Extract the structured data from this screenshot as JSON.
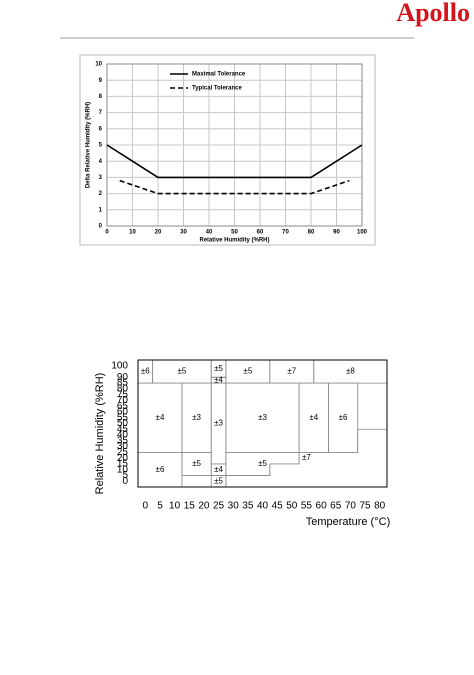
{
  "header": {
    "logo": "Apollo"
  },
  "chart_data": [
    {
      "type": "line",
      "ylabel": "Delta Relative Humidity (%RH)",
      "xlabel": "Relative Humidity (%RH)",
      "xlim": [
        0,
        100
      ],
      "xticks": [
        0,
        10,
        20,
        30,
        40,
        50,
        60,
        70,
        80,
        90,
        100
      ],
      "ylim": [
        0,
        10
      ],
      "yticks": [
        0,
        1,
        2,
        3,
        4,
        5,
        6,
        7,
        8,
        9,
        10
      ],
      "grid": true,
      "series": [
        {
          "name": "Maximal Tolerance",
          "color": "#000000",
          "dash": false,
          "x": [
            0,
            20,
            80,
            100
          ],
          "values": [
            5,
            3,
            3,
            5
          ]
        },
        {
          "name": "Typical Tolerance",
          "color": "#000000",
          "dash": true,
          "x": [
            5,
            20,
            80,
            95
          ],
          "values": [
            2.8,
            2,
            2,
            2.8
          ]
        }
      ]
    },
    {
      "type": "zones",
      "ylabel": "Relative Humidity (%RH)",
      "xlabel": "Temperature (°C)",
      "xlim": [
        -2.5,
        82.5
      ],
      "xticks": [
        0,
        5,
        10,
        15,
        20,
        25,
        30,
        35,
        40,
        45,
        50,
        55,
        60,
        65,
        70,
        75,
        80
      ],
      "ylim": [
        -5,
        105
      ],
      "yticks": [
        0,
        5,
        10,
        15,
        20,
        25,
        30,
        35,
        40,
        45,
        50,
        55,
        60,
        65,
        70,
        75,
        80,
        85,
        90,
        100
      ],
      "zones": [
        {
          "label": "±6",
          "t": [
            -2.5,
            2.5,
            2.5,
            -2.5
          ],
          "rh": [
            85,
            85,
            105,
            105
          ]
        },
        {
          "label": "±5",
          "t": [
            2.5,
            22.5,
            22.5,
            2.5
          ],
          "rh": [
            85,
            85,
            105,
            105
          ]
        },
        {
          "label": "±5",
          "t": [
            22.5,
            27.5,
            27.5,
            22.5
          ],
          "rh": [
            90,
            90,
            105,
            105
          ]
        },
        {
          "label": "±4",
          "t": [
            22.5,
            27.5,
            27.5,
            22.5
          ],
          "rh": [
            85,
            85,
            90,
            90
          ]
        },
        {
          "label": "±5",
          "t": [
            27.5,
            42.5,
            42.5,
            27.5
          ],
          "rh": [
            85,
            85,
            105,
            105
          ]
        },
        {
          "label": "±7",
          "t": [
            42.5,
            57.5,
            57.5,
            42.5
          ],
          "rh": [
            85,
            85,
            105,
            105
          ]
        },
        {
          "label": "±8",
          "t": [
            57.5,
            82.5,
            82.5,
            57.5
          ],
          "rh": [
            85,
            85,
            105,
            105
          ]
        },
        {
          "label": "±4",
          "t": [
            -2.5,
            12.5,
            12.5,
            -2.5
          ],
          "rh": [
            25,
            25,
            85,
            85
          ]
        },
        {
          "label": "±3",
          "t": [
            12.5,
            22.5,
            22.5,
            12.5
          ],
          "rh": [
            25,
            25,
            85,
            85
          ]
        },
        {
          "label": "±3",
          "t": [
            22.5,
            27.5,
            27.5,
            22.5
          ],
          "rh": [
            15,
            15,
            85,
            85
          ]
        },
        {
          "label": "±3",
          "t": [
            27.5,
            52.5,
            52.5,
            27.5
          ],
          "rh": [
            25,
            25,
            85,
            85
          ]
        },
        {
          "label": "±4",
          "t": [
            52.5,
            62.5,
            62.5,
            52.5
          ],
          "rh": [
            25,
            25,
            85,
            85
          ]
        },
        {
          "label": "±6",
          "t": [
            62.5,
            72.5,
            72.5,
            62.5
          ],
          "rh": [
            25,
            25,
            85,
            85
          ]
        },
        {
          "label": "±6",
          "t": [
            -2.5,
            12.5,
            12.5,
            -2.5
          ],
          "rh": [
            -5,
            -5,
            25,
            25
          ]
        },
        {
          "label": "±5",
          "t": [
            12.5,
            22.5,
            22.5,
            12.5
          ],
          "rh": [
            5,
            5,
            25,
            25
          ]
        },
        {
          "label": "±4",
          "t": [
            22.5,
            27.5,
            27.5,
            22.5
          ],
          "rh": [
            5,
            5,
            15,
            15
          ]
        },
        {
          "label": "±5",
          "t": [
            22.5,
            27.5,
            27.5,
            22.5
          ],
          "rh": [
            -5,
            -5,
            5,
            5
          ]
        },
        {
          "label": "±5",
          "t": [
            27.5,
            42.5,
            42.5,
            52.5,
            52.5,
            27.5
          ],
          "rh": [
            5,
            5,
            15,
            15,
            25,
            25
          ]
        },
        {
          "label": "±7",
          "t": [
            27.5,
            82.5,
            82.5,
            72.5,
            72.5,
            52.5,
            52.5,
            42.5,
            42.5,
            27.5
          ],
          "rh": [
            -5,
            -5,
            45,
            45,
            25,
            25,
            15,
            15,
            5,
            5
          ]
        }
      ]
    }
  ]
}
